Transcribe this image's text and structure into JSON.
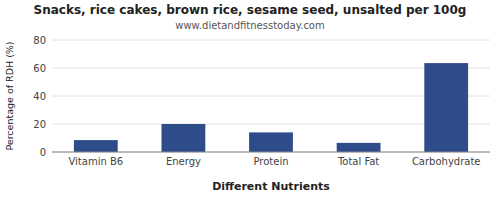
{
  "chart_data": {
    "type": "bar",
    "title": "Snacks, rice cakes, brown rice, sesame seed, unsalted per 100g",
    "subtitle": "www.dietandfitnesstoday.com",
    "xlabel": "Different Nutrients",
    "ylabel": "Percentage of RDH (%)",
    "categories": [
      "Vitamin B6",
      "Energy",
      "Protein",
      "Total Fat",
      "Carbohydrate"
    ],
    "values": [
      8.5,
      20.0,
      14.0,
      6.5,
      63.5
    ],
    "color": "#2e4b8a",
    "ylim": [
      0,
      80
    ],
    "yticks": [
      0,
      20,
      40,
      60,
      80
    ],
    "grid": true
  }
}
